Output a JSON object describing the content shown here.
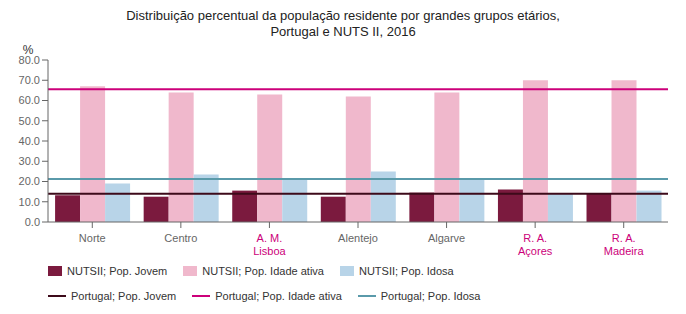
{
  "chart_data": {
    "type": "bar",
    "title": "Distribuição percentual da população residente por grandes grupos etários,\nPortugal e NUTS II, 2016",
    "ylabel": "%",
    "categories": [
      "Norte",
      "Centro",
      "A. M.\nLisboa",
      "Alentejo",
      "Algarve",
      "R. A.\nAçores",
      "R. A.\nMadeira"
    ],
    "category_colors": [
      null,
      null,
      "#cc007a",
      null,
      null,
      "#cc007a",
      "#cc007a"
    ],
    "series": [
      {
        "name": "NUTSII; Pop. Jovem",
        "color": "#7b1a3e",
        "values": [
          13.2,
          12.5,
          15.5,
          12.5,
          14.5,
          16.0,
          14.0
        ]
      },
      {
        "name": "NUTSII; Pop. Idade ativa",
        "color": "#f0b8cc",
        "values": [
          67.0,
          64.0,
          63.0,
          62.0,
          64.0,
          70.0,
          70.0
        ]
      },
      {
        "name": "NUTSII; Pop. Idosa",
        "color": "#b8d4e8",
        "values": [
          19.0,
          23.5,
          21.5,
          25.0,
          21.5,
          14.0,
          15.5
        ]
      }
    ],
    "reference_lines": [
      {
        "name": "Portugal; Pop. Jovem",
        "color": "#3d0a1a",
        "value": 14.0
      },
      {
        "name": "Portugal; Pop. Idade ativa",
        "color": "#cc007a",
        "value": 65.5
      },
      {
        "name": "Portugal; Pop. Idosa",
        "color": "#5a9aaa",
        "value": 21.2
      }
    ],
    "ylim": [
      0,
      80
    ],
    "yticks": [
      {
        "value": 0,
        "label": "0.0"
      },
      {
        "value": 10,
        "label": "10.0"
      },
      {
        "value": 20,
        "label": "20.0"
      },
      {
        "value": 30,
        "label": "30.0"
      },
      {
        "value": 40,
        "label": "40.0"
      },
      {
        "value": 50,
        "label": "50.0"
      },
      {
        "value": 60,
        "label": "60.0"
      },
      {
        "value": 70,
        "label": "70.0"
      },
      {
        "value": 80,
        "label": "80.0"
      }
    ],
    "grid": false,
    "legend": "lower left"
  }
}
